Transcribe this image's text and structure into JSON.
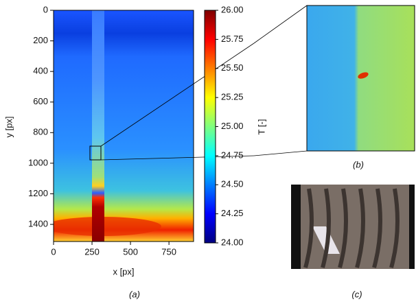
{
  "chart_data": {
    "type": "heatmap",
    "xlabel": "x [px]",
    "ylabel": "y [px]",
    "colorbar_label": "T [-]",
    "xlim": [
      0,
      910
    ],
    "xticks": [
      0,
      250,
      500,
      750
    ],
    "ylim": [
      0,
      1512
    ],
    "yticks": [
      0,
      200,
      400,
      600,
      800,
      1000,
      1200,
      1400
    ],
    "y_inverted": true,
    "clim": [
      24,
      26
    ],
    "cticks": [
      {
        "value": 24,
        "label": "24.00"
      },
      {
        "value": 24.25,
        "label": "24.25"
      },
      {
        "value": 24.5,
        "label": "24.50"
      },
      {
        "value": 24.75,
        "label": "24.75"
      },
      {
        "value": 25,
        "label": "25.00"
      },
      {
        "value": 25.25,
        "label": "25.25"
      },
      {
        "value": 25.5,
        "label": "25.50"
      },
      {
        "value": 25.75,
        "label": "25.75"
      },
      {
        "value": 26,
        "label": "26.00"
      }
    ],
    "colormap": [
      "#00007f",
      "#0000ff",
      "#007fff",
      "#00ffff",
      "#7fff7f",
      "#ffff00",
      "#ff7f00",
      "#ff0000",
      "#7f0000"
    ],
    "captions": [
      "(a)",
      "(b)",
      "(c)"
    ]
  }
}
